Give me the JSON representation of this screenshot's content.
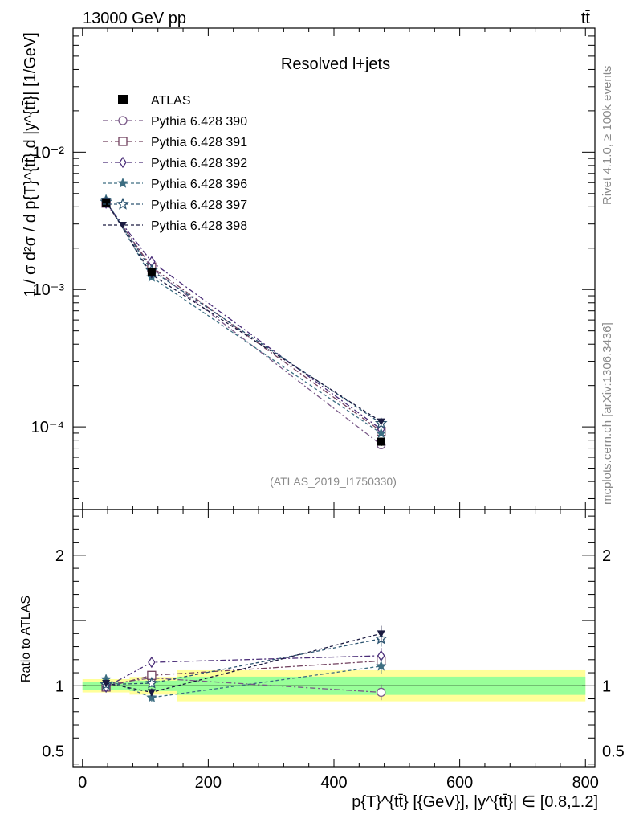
{
  "header": {
    "left": "13000 GeV pp",
    "right": "tt̄"
  },
  "side_labels": {
    "rivet": "Rivet 4.1.0, ≥ 100k events",
    "mcplots": "mcplots.cern.ch [arXiv:1306.3436]"
  },
  "watermark": "(ATLAS_2019_I1750330)",
  "colors": {
    "band_yellow": "#ffff99",
    "band_green": "#99ff99"
  },
  "chart_data": {
    "type": "line",
    "title": "Resolved l+jets",
    "ylabel": "1 / σ d²σ / d p{T}^{tt̄} d |y^{tt̄}| [1/GeV]",
    "xlabel": "p{T}^{tt̄} [{GeV}], |y^{tt̄}| ∈ [0.8,1.2]",
    "ratio_ylabel": "Ratio to ATLAS",
    "xlim": [
      -15,
      815
    ],
    "ylim_main": [
      2.5e-05,
      0.08
    ],
    "ylim_ratio": [
      0.38,
      2.35
    ],
    "x": [
      37.5,
      110,
      475
    ],
    "x_bin_edges": [
      [
        0,
        75
      ],
      [
        75,
        150
      ],
      [
        150,
        800
      ]
    ],
    "x_ticks": [
      "0",
      "200",
      "400",
      "600",
      "800"
    ],
    "y_main_ticks": [
      "10⁻⁴",
      "10⁻³",
      "10⁻²"
    ],
    "y_ratio_ticks": [
      "0.5",
      "1",
      "2"
    ],
    "data": {
      "name": "ATLAS",
      "values": [
        0.0043,
        0.00135,
        7.8e-05
      ],
      "rel_err": [
        0.03,
        0.04,
        0.07
      ]
    },
    "series": [
      {
        "name": "Pythia 6.428 390",
        "color": "#7a5a88",
        "marker": "circle-open",
        "dash": "7,3,2,3",
        "ratio": [
          1.01,
          1.06,
          0.95
        ],
        "ratio_err": [
          0.02,
          0.03,
          0.06
        ]
      },
      {
        "name": "Pythia 6.428 391",
        "color": "#70405e",
        "marker": "square-open",
        "dash": "7,3,2,3",
        "ratio": [
          0.99,
          1.08,
          1.19
        ],
        "ratio_err": [
          0.02,
          0.03,
          0.06
        ]
      },
      {
        "name": "Pythia 6.428 392",
        "color": "#4a2d78",
        "marker": "diamond-open",
        "dash": "7,3,2,3",
        "ratio": [
          0.99,
          1.18,
          1.23
        ],
        "ratio_err": [
          0.02,
          0.03,
          0.06
        ]
      },
      {
        "name": "Pythia 6.428 396",
        "color": "#3d6e82",
        "marker": "star-filled",
        "dash": "4,3",
        "ratio": [
          1.05,
          0.91,
          1.15
        ],
        "ratio_err": [
          0.02,
          0.03,
          0.06
        ]
      },
      {
        "name": "Pythia 6.428 397",
        "color": "#2c5470",
        "marker": "star-open",
        "dash": "4,3",
        "ratio": [
          1.01,
          1.02,
          1.36
        ],
        "ratio_err": [
          0.02,
          0.03,
          0.06
        ]
      },
      {
        "name": "Pythia 6.428 398",
        "color": "#1a1a40",
        "marker": "triangle-down-filled",
        "dash": "4,3",
        "ratio": [
          1.02,
          0.95,
          1.4
        ],
        "ratio_err": [
          0.02,
          0.03,
          0.06
        ]
      }
    ]
  }
}
